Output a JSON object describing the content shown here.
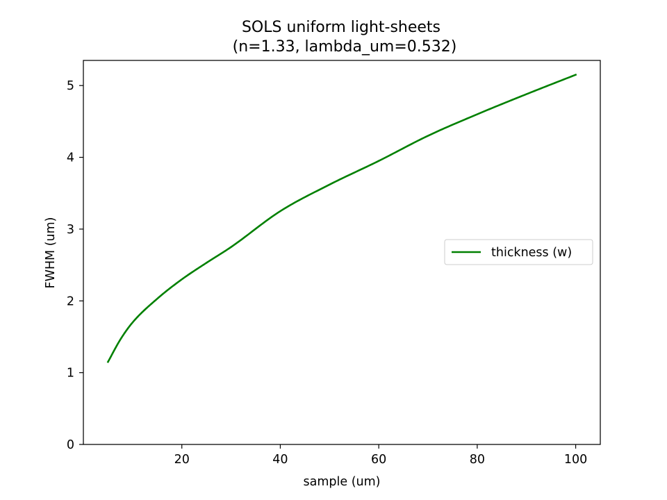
{
  "chart_data": {
    "type": "line",
    "title": "SOLS uniform light-sheets",
    "subtitle": "(n=1.33, lambda_um=0.532)",
    "xlabel": "sample (um)",
    "ylabel": "FWHM (um)",
    "xlim": [
      0,
      105
    ],
    "ylim": [
      0,
      5.35
    ],
    "xticks": [
      20,
      40,
      60,
      80,
      100
    ],
    "yticks": [
      0,
      1,
      2,
      3,
      4,
      5
    ],
    "grid": false,
    "legend_position": "center-right",
    "series": [
      {
        "name": "thickness (w)",
        "color": "#008000",
        "x": [
          5,
          7.5,
          10,
          15,
          20,
          25,
          30,
          40,
          50,
          60,
          70,
          80,
          90,
          100
        ],
        "y": [
          1.15,
          1.46,
          1.7,
          2.03,
          2.3,
          2.53,
          2.75,
          3.25,
          3.62,
          3.95,
          4.3,
          4.6,
          4.88,
          5.15
        ]
      }
    ]
  }
}
